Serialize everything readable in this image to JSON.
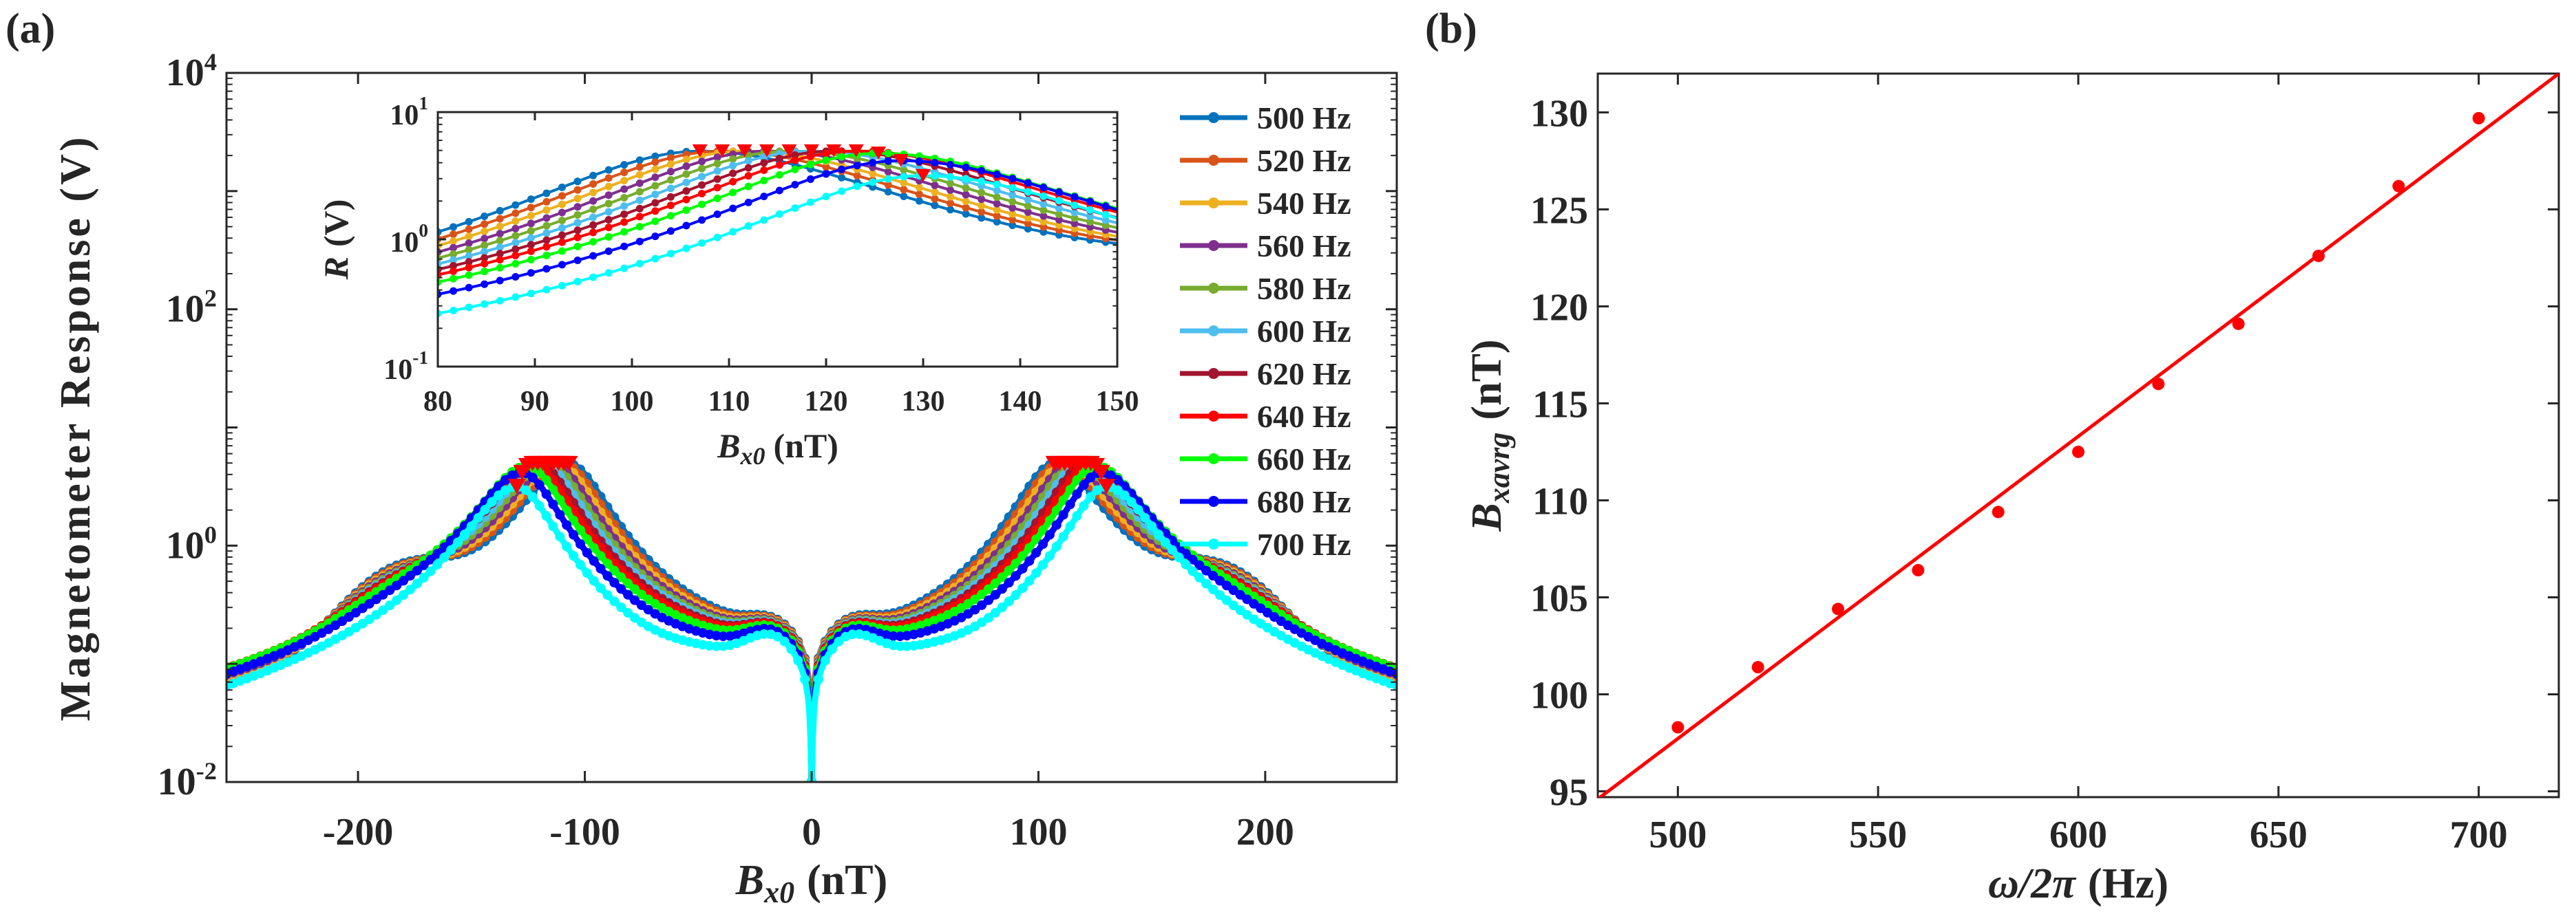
{
  "panel_labels": {
    "a": "(a)",
    "b": "(b)"
  },
  "chart_data": [
    {
      "type": "line",
      "id": "a",
      "title": "",
      "xlabel": {
        "symbol": "B",
        "sub": "x0",
        "unit": "(nT)"
      },
      "ylabel": "Magnetometer Response (V)",
      "xlim": [
        -258,
        258
      ],
      "ylim": [
        0.01,
        10000
      ],
      "yscale": "log",
      "xticks": [
        -200,
        -100,
        0,
        100,
        200
      ],
      "yticks_exp": [
        -2,
        0,
        2,
        4
      ],
      "tick_base": "10",
      "legend": "right of inset",
      "series": [
        {
          "name": "500 Hz",
          "color": "#0072BD",
          "peak_B": 107.0,
          "peak_R": 5.0
        },
        {
          "name": "520 Hz",
          "color": "#D95319",
          "peak_B": 109.3,
          "peak_R": 5.0
        },
        {
          "name": "540 Hz",
          "color": "#EDB120",
          "peak_B": 111.6,
          "peak_R": 5.0
        },
        {
          "name": "560 Hz",
          "color": "#7E2F8E",
          "peak_B": 113.9,
          "peak_R": 5.0
        },
        {
          "name": "580 Hz",
          "color": "#77AC30",
          "peak_B": 116.2,
          "peak_R": 5.0
        },
        {
          "name": "600 Hz",
          "color": "#4DBEEE",
          "peak_B": 118.5,
          "peak_R": 5.0
        },
        {
          "name": "620 Hz",
          "color": "#A2142F",
          "peak_B": 120.8,
          "peak_R": 5.0
        },
        {
          "name": "640 Hz",
          "color": "#FF0000",
          "peak_B": 123.1,
          "peak_R": 5.0
        },
        {
          "name": "660 Hz",
          "color": "#00FF00",
          "peak_B": 125.4,
          "peak_R": 4.8
        },
        {
          "name": "680 Hz",
          "color": "#0000FF",
          "peak_B": 127.7,
          "peak_R": 4.2
        },
        {
          "name": "700 Hz",
          "color": "#00FFFF",
          "peak_B": 130.0,
          "peak_R": 3.2
        }
      ],
      "peak_marker_color": "#FF0000",
      "inset": {
        "xlabel": {
          "symbol": "B",
          "sub": "x0",
          "unit": "(nT)"
        },
        "ylabel": {
          "symbol": "R",
          "unit": "(V)"
        },
        "xlim": [
          80,
          150
        ],
        "ylim": [
          0.1,
          10
        ],
        "yscale": "log",
        "xticks": [
          80,
          90,
          100,
          110,
          120,
          130,
          140,
          150
        ],
        "yticks_exp": [
          -1,
          0,
          1
        ]
      }
    },
    {
      "type": "scatter",
      "id": "b",
      "xlabel": {
        "symbol": "ω/2π",
        "unit": "(Hz)"
      },
      "ylabel": {
        "symbol": "B",
        "sub": "xavrg",
        "unit": "(nT)"
      },
      "xlim": [
        480,
        720
      ],
      "ylim": [
        94.7,
        132
      ],
      "xticks": [
        500,
        550,
        600,
        650,
        700
      ],
      "yticks": [
        95,
        100,
        105,
        110,
        115,
        120,
        125,
        130
      ],
      "color": "#FF0000",
      "x": [
        500,
        520,
        540,
        560,
        580,
        600,
        620,
        640,
        660,
        680,
        700
      ],
      "y": [
        98.3,
        101.4,
        104.4,
        106.4,
        109.4,
        112.5,
        116.0,
        119.1,
        122.6,
        126.2,
        129.7
      ],
      "fit": {
        "x": [
          480,
          720
        ],
        "y": [
          94.6,
          132.0
        ]
      }
    }
  ]
}
